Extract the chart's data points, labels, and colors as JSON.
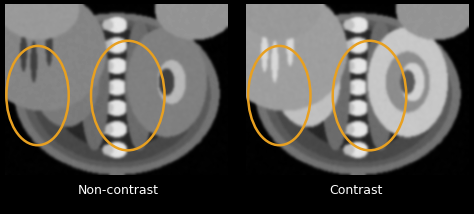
{
  "background_color": "#000000",
  "label_left": "Non-contrast",
  "label_right": "Contrast",
  "label_color": "white",
  "label_fontsize": 9,
  "ellipse_color": "#e8a020",
  "ellipse_lw": 1.8,
  "fig_width": 4.74,
  "fig_height": 2.14,
  "gap_color": "#2a2a2a"
}
